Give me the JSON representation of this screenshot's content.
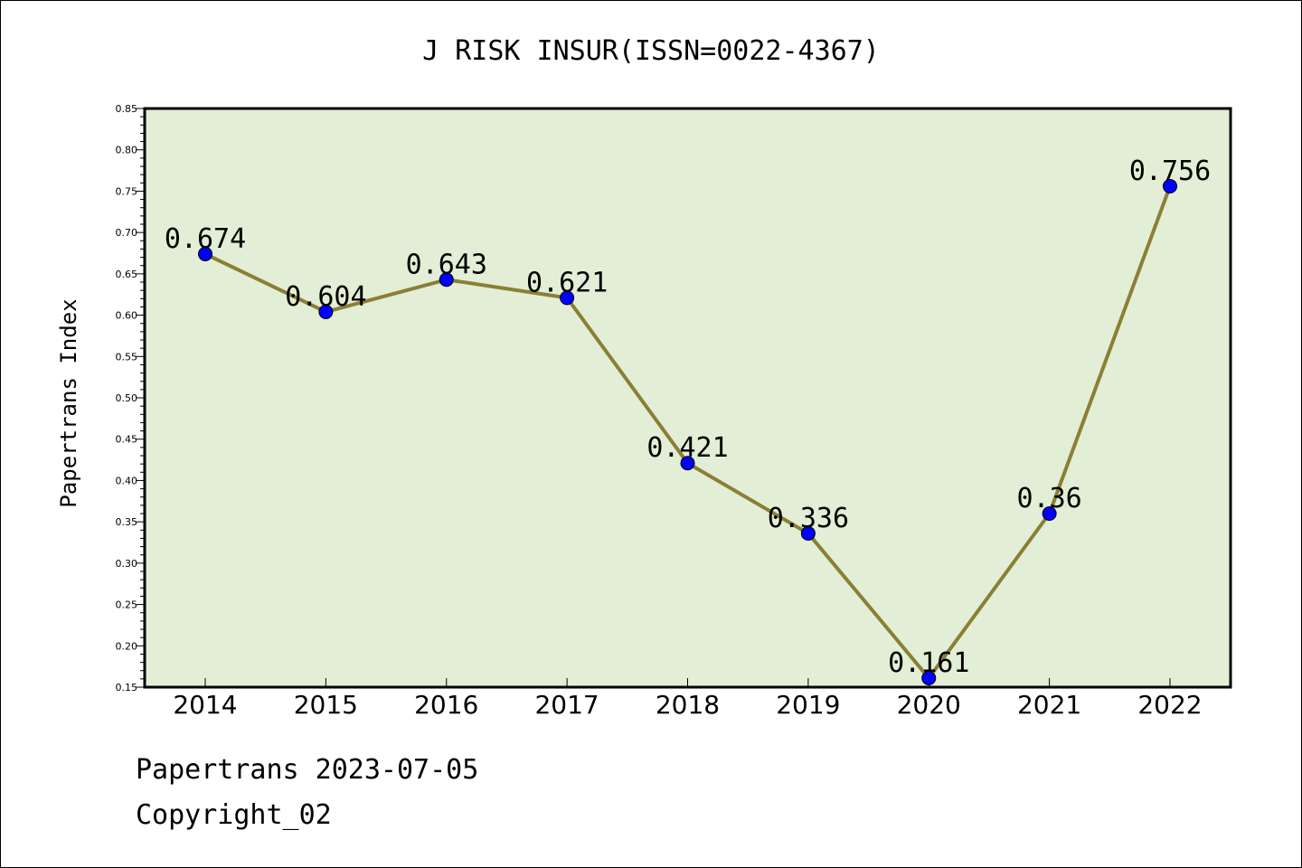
{
  "chart_data": {
    "type": "line",
    "title": "J RISK INSUR(ISSN=0022-4367)",
    "ylabel": "Papertrans Index",
    "xlabel": "",
    "categories": [
      "2014",
      "2015",
      "2016",
      "2017",
      "2018",
      "2019",
      "2020",
      "2021",
      "2022"
    ],
    "values": [
      0.674,
      0.604,
      0.643,
      0.621,
      0.421,
      0.336,
      0.161,
      0.36,
      0.756
    ],
    "data_labels": [
      "0.674",
      "0.604",
      "0.643",
      "0.621",
      "0.421",
      "0.336",
      "0.161",
      "0.36",
      "0.756"
    ],
    "ylim": [
      0.15,
      0.85
    ],
    "yticks": [
      "0.15",
      "0.20",
      "0.25",
      "0.30",
      "0.35",
      "0.40",
      "0.45",
      "0.50",
      "0.55",
      "0.60",
      "0.65",
      "0.70",
      "0.75",
      "0.80",
      "0.85"
    ],
    "grid": false,
    "legend": "none",
    "colors": {
      "background": "#e2efd6",
      "line": "#8b7f35",
      "marker": "#0000ff"
    }
  },
  "footer": {
    "date_line": "Papertrans 2023-07-05",
    "copyright": "Copyright_02"
  }
}
